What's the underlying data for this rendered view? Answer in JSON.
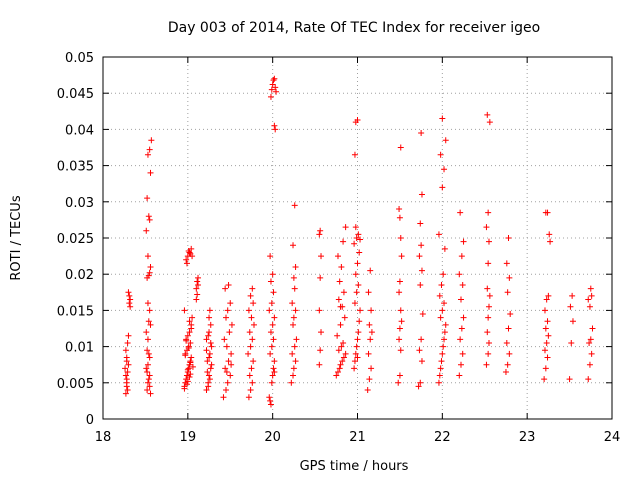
{
  "chart_data": {
    "type": "scatter",
    "title": "Day 003 of 2014, Rate Of TEC Index for receiver igeo",
    "xlabel": "GPS time / hours",
    "ylabel": "ROTI / TECUs",
    "xlim": [
      18,
      24
    ],
    "ylim": [
      0,
      0.05
    ],
    "xticks": [
      18,
      19,
      20,
      21,
      22,
      23,
      24
    ],
    "yticks": [
      0,
      0.005,
      0.01,
      0.015,
      0.02,
      0.025,
      0.03,
      0.035,
      0.04,
      0.045,
      0.05
    ],
    "ytick_labels": [
      "0",
      "0.005",
      "0.01",
      "0.015",
      "0.02",
      "0.025",
      "0.03",
      "0.035",
      "0.04",
      "0.045",
      "0.05"
    ],
    "grid": true,
    "marker": "+",
    "color": "#ff0000",
    "series": [
      {
        "name": "ROTI",
        "x": [
          18.27,
          18.28,
          18.28,
          18.29,
          18.3,
          18.28,
          18.27,
          18.29,
          18.3,
          18.28,
          18.27,
          18.26,
          18.29,
          18.28,
          18.31,
          18.31,
          18.32,
          18.3,
          18.32,
          18.52,
          18.53,
          18.55,
          18.51,
          18.54,
          18.55,
          18.52,
          18.53,
          18.56,
          18.54,
          18.52,
          18.55,
          18.53,
          18.51,
          18.56,
          18.54,
          18.55,
          18.53,
          18.52,
          18.54,
          18.55,
          18.56,
          18.53,
          18.51,
          18.55,
          18.54,
          18.52,
          18.56,
          18.53,
          18.55,
          18.57,
          18.96,
          18.97,
          18.98,
          18.99,
          19.0,
          19.01,
          19.02,
          19.03,
          19.04,
          18.97,
          18.99,
          19.01,
          19.03,
          18.98,
          19.0,
          19.02,
          19.04,
          18.96,
          18.99,
          19.02,
          19.0,
          19.03,
          18.97,
          19.01,
          18.98,
          19.04,
          19.02,
          19.05,
          18.96,
          19.0,
          19.03,
          19.06,
          18.98,
          19.0,
          19.02,
          19.04,
          19.05,
          18.99,
          19.01,
          19.03,
          19.1,
          19.11,
          19.12,
          19.11,
          19.12,
          19.1,
          19.22,
          19.24,
          19.25,
          19.27,
          19.23,
          19.26,
          19.28,
          19.22,
          19.25,
          19.27,
          19.24,
          19.26,
          19.23,
          19.28,
          19.25,
          19.22,
          19.27,
          19.24,
          19.26,
          19.25,
          19.42,
          19.45,
          19.47,
          19.5,
          19.44,
          19.48,
          19.51,
          19.46,
          19.43,
          19.49,
          19.52,
          19.45,
          19.47,
          19.5,
          19.44,
          19.48,
          19.46,
          19.51,
          19.72,
          19.74,
          19.76,
          19.73,
          19.75,
          19.77,
          19.71,
          19.74,
          19.76,
          19.73,
          19.78,
          19.75,
          19.72,
          19.77,
          19.74,
          19.76,
          19.96,
          19.97,
          19.98,
          19.99,
          20.0,
          20.01,
          20.02,
          19.97,
          19.99,
          20.01,
          19.98,
          20.0,
          20.02,
          19.96,
          19.99,
          20.01,
          19.98,
          20.0,
          19.97,
          20.02,
          19.98,
          19.99,
          20.0,
          20.01,
          20.02,
          20.03,
          20.04,
          20.02,
          20.03,
          20.22,
          20.24,
          20.25,
          20.27,
          20.23,
          20.26,
          20.28,
          20.24,
          20.25,
          20.27,
          20.23,
          20.26,
          20.25,
          20.27,
          20.24,
          20.26,
          20.55,
          20.56,
          20.57,
          20.55,
          20.56,
          20.57,
          20.55,
          20.56,
          20.75,
          20.77,
          20.79,
          20.8,
          20.82,
          20.84,
          20.86,
          20.78,
          20.81,
          20.83,
          20.76,
          20.8,
          20.85,
          20.82,
          20.78,
          20.84,
          20.79,
          20.81,
          20.77,
          20.83,
          20.86,
          20.8,
          20.96,
          20.97,
          20.98,
          20.99,
          21.0,
          21.01,
          21.02,
          21.03,
          20.97,
          20.99,
          21.01,
          20.98,
          21.0,
          21.02,
          20.96,
          21.03,
          20.99,
          21.01,
          20.98,
          21.0,
          20.97,
          20.98,
          21.0,
          21.12,
          21.14,
          21.16,
          21.13,
          21.15,
          21.17,
          21.14,
          21.16,
          21.13,
          21.15,
          21.48,
          21.5,
          21.51,
          21.49,
          21.5,
          21.52,
          21.51,
          21.49,
          21.5,
          21.52,
          21.51,
          21.5,
          21.49,
          21.51,
          21.72,
          21.74,
          21.76,
          21.73,
          21.75,
          21.77,
          21.74,
          21.76,
          21.73,
          21.75,
          21.74,
          21.76,
          21.75,
          21.96,
          21.97,
          21.98,
          21.99,
          22.0,
          22.01,
          22.02,
          22.03,
          22.04,
          21.98,
          22.0,
          22.02,
          21.97,
          21.99,
          22.01,
          22.03,
          21.96,
          22.0,
          22.02,
          21.98,
          22.04,
          22.0,
          22.2,
          22.22,
          22.24,
          22.21,
          22.23,
          22.25,
          22.22,
          22.24,
          22.2,
          22.23,
          22.25,
          22.21,
          22.52,
          22.54,
          22.55,
          22.53,
          22.54,
          22.55,
          22.56,
          22.53,
          22.54,
          22.55,
          22.52,
          22.54,
          22.56,
          22.53,
          22.75,
          22.77,
          22.79,
          22.76,
          22.78,
          22.8,
          22.77,
          22.79,
          22.76,
          22.78,
          23.2,
          23.22,
          23.24,
          23.21,
          23.23,
          23.25,
          23.22,
          23.24,
          23.21,
          23.23,
          23.25,
          23.22,
          23.24,
          23.26,
          23.27,
          23.5,
          23.52,
          23.54,
          23.51,
          23.53,
          23.72,
          23.74,
          23.76,
          23.73,
          23.75,
          23.77,
          23.74,
          23.72,
          23.76,
          23.75
        ],
        "y": [
          0.0035,
          0.0045,
          0.0055,
          0.0065,
          0.0075,
          0.0085,
          0.0095,
          0.0105,
          0.0115,
          0.005,
          0.006,
          0.007,
          0.004,
          0.008,
          0.016,
          0.017,
          0.0165,
          0.0175,
          0.0155,
          0.004,
          0.005,
          0.006,
          0.007,
          0.0055,
          0.0045,
          0.0065,
          0.0075,
          0.0035,
          0.009,
          0.0095,
          0.0085,
          0.011,
          0.012,
          0.013,
          0.0135,
          0.015,
          0.016,
          0.0195,
          0.0198,
          0.0202,
          0.021,
          0.0225,
          0.026,
          0.0275,
          0.028,
          0.0305,
          0.034,
          0.0365,
          0.0372,
          0.0385,
          0.0045,
          0.005,
          0.0055,
          0.006,
          0.0065,
          0.007,
          0.0075,
          0.008,
          0.0085,
          0.009,
          0.0095,
          0.01,
          0.0105,
          0.011,
          0.0115,
          0.012,
          0.0125,
          0.0042,
          0.0048,
          0.0058,
          0.0068,
          0.0078,
          0.0088,
          0.0098,
          0.0108,
          0.013,
          0.0135,
          0.014,
          0.015,
          0.0052,
          0.0062,
          0.0072,
          0.022,
          0.0225,
          0.023,
          0.0235,
          0.0225,
          0.0215,
          0.0232,
          0.0228,
          0.018,
          0.019,
          0.0195,
          0.0172,
          0.0185,
          0.0165,
          0.004,
          0.005,
          0.006,
          0.007,
          0.008,
          0.009,
          0.01,
          0.011,
          0.012,
          0.013,
          0.0045,
          0.0055,
          0.0065,
          0.0075,
          0.0085,
          0.0095,
          0.0105,
          0.0115,
          0.015,
          0.014,
          0.003,
          0.004,
          0.005,
          0.006,
          0.007,
          0.008,
          0.009,
          0.01,
          0.011,
          0.012,
          0.013,
          0.014,
          0.015,
          0.016,
          0.018,
          0.0185,
          0.0065,
          0.0075,
          0.003,
          0.004,
          0.005,
          0.006,
          0.007,
          0.008,
          0.009,
          0.01,
          0.011,
          0.012,
          0.013,
          0.014,
          0.015,
          0.016,
          0.017,
          0.018,
          0.003,
          0.0025,
          0.002,
          0.005,
          0.006,
          0.007,
          0.008,
          0.009,
          0.01,
          0.011,
          0.012,
          0.013,
          0.014,
          0.015,
          0.016,
          0.0175,
          0.019,
          0.02,
          0.0225,
          0.0065,
          0.0445,
          0.0455,
          0.0462,
          0.0468,
          0.047,
          0.0458,
          0.0452,
          0.0405,
          0.04,
          0.005,
          0.006,
          0.007,
          0.008,
          0.009,
          0.01,
          0.011,
          0.013,
          0.014,
          0.015,
          0.016,
          0.018,
          0.0195,
          0.021,
          0.024,
          0.0295,
          0.0075,
          0.0095,
          0.012,
          0.015,
          0.0195,
          0.0225,
          0.0255,
          0.026,
          0.006,
          0.0065,
          0.007,
          0.0075,
          0.008,
          0.0085,
          0.009,
          0.0095,
          0.01,
          0.0105,
          0.0115,
          0.013,
          0.014,
          0.0155,
          0.0165,
          0.0175,
          0.019,
          0.021,
          0.0225,
          0.0245,
          0.0265,
          0.0155,
          0.007,
          0.008,
          0.009,
          0.01,
          0.011,
          0.012,
          0.0135,
          0.015,
          0.016,
          0.0175,
          0.0185,
          0.02,
          0.0215,
          0.023,
          0.0242,
          0.0248,
          0.025,
          0.0255,
          0.0265,
          0.0085,
          0.0365,
          0.041,
          0.0413,
          0.004,
          0.0055,
          0.007,
          0.009,
          0.011,
          0.012,
          0.013,
          0.015,
          0.0175,
          0.0205,
          0.005,
          0.006,
          0.0095,
          0.011,
          0.0125,
          0.0135,
          0.015,
          0.0175,
          0.019,
          0.0225,
          0.025,
          0.0278,
          0.029,
          0.0375,
          0.0045,
          0.005,
          0.008,
          0.0095,
          0.011,
          0.0145,
          0.0185,
          0.0205,
          0.0225,
          0.024,
          0.027,
          0.031,
          0.0395,
          0.005,
          0.006,
          0.007,
          0.008,
          0.009,
          0.01,
          0.011,
          0.012,
          0.013,
          0.014,
          0.015,
          0.016,
          0.017,
          0.0185,
          0.02,
          0.0235,
          0.0255,
          0.032,
          0.0345,
          0.0365,
          0.0385,
          0.0415,
          0.006,
          0.0075,
          0.009,
          0.011,
          0.0125,
          0.014,
          0.0165,
          0.0185,
          0.02,
          0.0225,
          0.0245,
          0.0285,
          0.0075,
          0.009,
          0.0105,
          0.012,
          0.014,
          0.0155,
          0.017,
          0.018,
          0.0215,
          0.0245,
          0.0265,
          0.0285,
          0.041,
          0.042,
          0.0065,
          0.0075,
          0.009,
          0.0105,
          0.0125,
          0.0145,
          0.0175,
          0.0195,
          0.0215,
          0.025,
          0.0055,
          0.007,
          0.0085,
          0.0095,
          0.0105,
          0.0115,
          0.0125,
          0.0135,
          0.015,
          0.0165,
          0.017,
          0.0285,
          0.0285,
          0.0255,
          0.0245,
          0.0055,
          0.0105,
          0.0135,
          0.0155,
          0.017,
          0.0055,
          0.0075,
          0.009,
          0.0105,
          0.011,
          0.0125,
          0.0155,
          0.0165,
          0.017,
          0.018
        ]
      }
    ]
  }
}
